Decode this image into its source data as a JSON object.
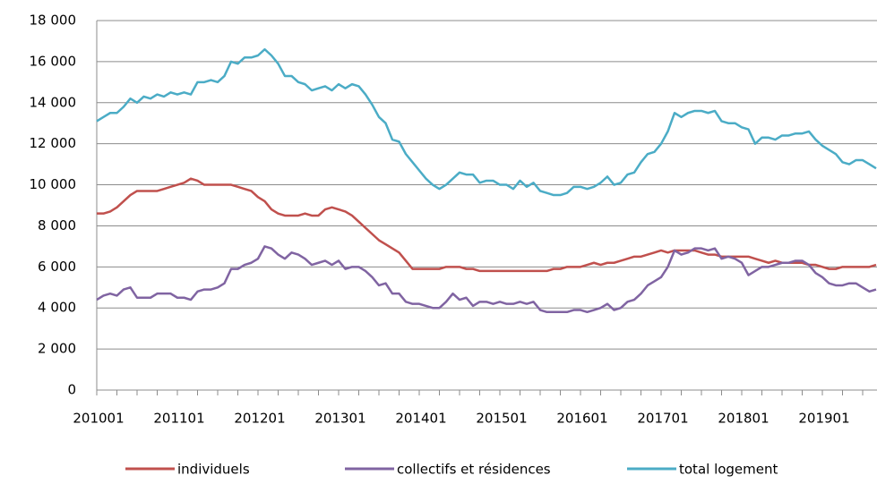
{
  "chart_data": {
    "type": "line",
    "categories": [
      "201001",
      null,
      null,
      null,
      null,
      null,
      null,
      null,
      null,
      null,
      null,
      null,
      "201101",
      null,
      null,
      null,
      null,
      null,
      null,
      null,
      null,
      null,
      null,
      null,
      "201201",
      null,
      null,
      null,
      null,
      null,
      null,
      null,
      null,
      null,
      null,
      null,
      "201301",
      null,
      null,
      null,
      null,
      null,
      null,
      null,
      null,
      null,
      null,
      null,
      "201401",
      null,
      null,
      null,
      null,
      null,
      null,
      null,
      null,
      null,
      null,
      null,
      "201501",
      null,
      null,
      null,
      null,
      null,
      null,
      null,
      null,
      null,
      null,
      null,
      "201601",
      null,
      null,
      null,
      null,
      null,
      null,
      null,
      null,
      null,
      null,
      null,
      "201701",
      null,
      null,
      null,
      null,
      null,
      null,
      null,
      null,
      null,
      null,
      null,
      "201801",
      null,
      null,
      null,
      null,
      null,
      null,
      null,
      null,
      null,
      null,
      null,
      "201901",
      null,
      null,
      null,
      null,
      null,
      null,
      null,
      null
    ],
    "series": [
      {
        "name": "individuels",
        "color": "#c0504d",
        "values": [
          8600,
          8600,
          8700,
          8900,
          9200,
          9500,
          9700,
          9700,
          9700,
          9700,
          9800,
          9900,
          10000,
          10100,
          10300,
          10200,
          10000,
          10000,
          10000,
          10000,
          10000,
          9900,
          9800,
          9700,
          9400,
          9200,
          8800,
          8600,
          8500,
          8500,
          8500,
          8600,
          8500,
          8500,
          8800,
          8900,
          8800,
          8700,
          8500,
          8200,
          7900,
          7600,
          7300,
          7100,
          6900,
          6700,
          6300,
          5900,
          5900,
          5900,
          5900,
          5900,
          6000,
          6000,
          6000,
          5900,
          5900,
          5800,
          5800,
          5800,
          5800,
          5800,
          5800,
          5800,
          5800,
          5800,
          5800,
          5800,
          5900,
          5900,
          6000,
          6000,
          6000,
          6100,
          6200,
          6100,
          6200,
          6200,
          6300,
          6400,
          6500,
          6500,
          6600,
          6700,
          6800,
          6700,
          6800,
          6800,
          6800,
          6800,
          6700,
          6600,
          6600,
          6500,
          6500,
          6500,
          6500,
          6500,
          6400,
          6300,
          6200,
          6300,
          6200,
          6200,
          6200,
          6200,
          6100,
          6100,
          6000,
          5900,
          5900,
          6000,
          6000,
          6000,
          6000,
          6000,
          6100
        ]
      },
      {
        "name": "collectifs et résidences",
        "color": "#8064a2",
        "values": [
          4400,
          4600,
          4700,
          4600,
          4900,
          5000,
          4500,
          4500,
          4500,
          4700,
          4700,
          4700,
          4500,
          4500,
          4400,
          4800,
          4900,
          4900,
          5000,
          5200,
          5900,
          5900,
          6100,
          6200,
          6400,
          7000,
          6900,
          6600,
          6400,
          6700,
          6600,
          6400,
          6100,
          6200,
          6300,
          6100,
          6300,
          5900,
          6000,
          6000,
          5800,
          5500,
          5100,
          5200,
          4700,
          4700,
          4300,
          4200,
          4200,
          4100,
          4000,
          4000,
          4300,
          4700,
          4400,
          4500,
          4100,
          4300,
          4300,
          4200,
          4300,
          4200,
          4200,
          4300,
          4200,
          4300,
          3900,
          3800,
          3800,
          3800,
          3800,
          3900,
          3900,
          3800,
          3900,
          4000,
          4200,
          3900,
          4000,
          4300,
          4400,
          4700,
          5100,
          5300,
          5500,
          6000,
          6800,
          6600,
          6700,
          6900,
          6900,
          6800,
          6900,
          6400,
          6500,
          6400,
          6200,
          5600,
          5800,
          6000,
          6000,
          6100,
          6200,
          6200,
          6300,
          6300,
          6100,
          5700,
          5500,
          5200,
          5100,
          5100,
          5200,
          5200,
          5000,
          4800,
          4900
        ]
      },
      {
        "name": "total logement",
        "color": "#4bacc6",
        "values": [
          13100,
          13300,
          13500,
          13500,
          13800,
          14200,
          14000,
          14300,
          14200,
          14400,
          14300,
          14500,
          14400,
          14500,
          14400,
          15000,
          15000,
          15100,
          15000,
          15300,
          16000,
          15900,
          16200,
          16200,
          16300,
          16600,
          16300,
          15900,
          15300,
          15300,
          15000,
          14900,
          14600,
          14700,
          14800,
          14600,
          14900,
          14700,
          14900,
          14800,
          14400,
          13900,
          13300,
          13000,
          12200,
          12100,
          11500,
          11100,
          10700,
          10300,
          10000,
          9800,
          10000,
          10300,
          10600,
          10500,
          10500,
          10100,
          10200,
          10200,
          10000,
          10000,
          9800,
          10200,
          9900,
          10100,
          9700,
          9600,
          9500,
          9500,
          9600,
          9900,
          9900,
          9800,
          9900,
          10100,
          10400,
          10000,
          10100,
          10500,
          10600,
          11100,
          11500,
          11600,
          12000,
          12600,
          13500,
          13300,
          13500,
          13600,
          13600,
          13500,
          13600,
          13100,
          13000,
          13000,
          12800,
          12700,
          12000,
          12300,
          12300,
          12200,
          12400,
          12400,
          12500,
          12500,
          12600,
          12200,
          11900,
          11700,
          11500,
          11100,
          11000,
          11200,
          11200,
          11000,
          10800
        ]
      }
    ],
    "ylim": [
      0,
      18000
    ],
    "yticks": [
      0,
      {
        "value": 2000,
        "label": "2 000"
      },
      {
        "value": 4000,
        "label": "4 000"
      },
      {
        "value": 6000,
        "label": "6 000"
      },
      {
        "value": 8000,
        "label": "8 000"
      },
      {
        "value": 10000,
        "label": "10 000"
      },
      {
        "value": 12000,
        "label": "12 000"
      },
      {
        "value": 14000,
        "label": "14 000"
      },
      {
        "value": 16000,
        "label": "16 000"
      },
      {
        "value": 18000,
        "label": "18 000"
      }
    ],
    "grid": true,
    "legend": "bottom"
  }
}
